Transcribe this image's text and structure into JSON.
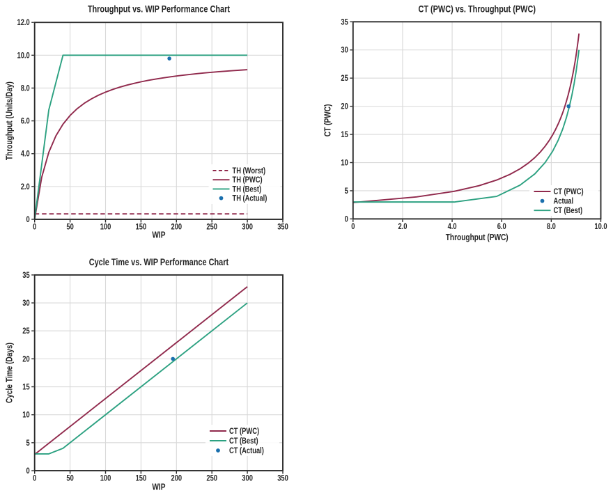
{
  "page": {
    "background": "#ffffff"
  },
  "colors": {
    "pwc_red": "#90294C",
    "best_green": "#2CA181",
    "actual_blue": "#1A6FAD",
    "grid": "#d9d9d9",
    "spine": "#2b2b2b",
    "text": "#252525",
    "plot_background": "#ffffff"
  },
  "chart_data": [
    {
      "type": "line",
      "title": "Throughput vs. WIP Performance Chart",
      "xlabel": "WIP",
      "ylabel": "Throughput (Units/Day)",
      "xlim": [
        0,
        350
      ],
      "ylim": [
        0,
        12
      ],
      "grid": true,
      "legend_position": "lower right",
      "xticks": {
        "values": [
          0,
          50,
          100,
          150,
          200,
          250,
          300,
          350
        ],
        "labels": [
          "0",
          "50",
          "100",
          "150",
          "200",
          "250",
          "300",
          "350"
        ]
      },
      "yticks": {
        "values": [
          0,
          2,
          4,
          6,
          8,
          10,
          12
        ],
        "labels": [
          "0",
          "2.0",
          "4.0",
          "6.0",
          "8.0",
          "10.0",
          "12.0"
        ]
      },
      "series": [
        {
          "name": "TH (Worst)",
          "kind": "line",
          "dash": "dashed",
          "color": "#90294C",
          "points": [
            [
              0,
              0.333
            ],
            [
              300,
              0.333
            ]
          ]
        },
        {
          "name": "TH (PWC)",
          "kind": "line",
          "dash": "solid",
          "color": "#90294C",
          "points": [
            [
              0,
              0.0
            ],
            [
              10,
              2.564
            ],
            [
              20,
              4.082
            ],
            [
              30,
              5.085
            ],
            [
              40,
              5.797
            ],
            [
              50,
              6.329
            ],
            [
              60,
              6.742
            ],
            [
              70,
              7.071
            ],
            [
              80,
              7.339
            ],
            [
              90,
              7.563
            ],
            [
              100,
              7.752
            ],
            [
              110,
              7.914
            ],
            [
              120,
              8.054
            ],
            [
              130,
              8.176
            ],
            [
              140,
              8.284
            ],
            [
              150,
              8.38
            ],
            [
              160,
              8.466
            ],
            [
              170,
              8.543
            ],
            [
              180,
              8.612
            ],
            [
              190,
              8.676
            ],
            [
              200,
              8.734
            ],
            [
              210,
              8.787
            ],
            [
              220,
              8.835
            ],
            [
              230,
              8.88
            ],
            [
              240,
              8.922
            ],
            [
              250,
              8.961
            ],
            [
              260,
              8.997
            ],
            [
              270,
              9.03
            ],
            [
              280,
              9.061
            ],
            [
              290,
              9.091
            ],
            [
              300,
              9.119
            ]
          ]
        },
        {
          "name": "TH (Best)",
          "kind": "line",
          "dash": "solid",
          "color": "#2CA181",
          "points": [
            [
              0,
              0
            ],
            [
              20,
              6.667
            ],
            [
              40,
              10
            ],
            [
              300,
              10
            ]
          ]
        },
        {
          "name": "TH (Actual)",
          "kind": "scatter",
          "color": "#1A6FAD",
          "points": [
            [
              190,
              9.8
            ]
          ]
        }
      ]
    },
    {
      "type": "line",
      "title": "CT (PWC) vs. Throughput (PWC)",
      "xlabel": "Throughput (PWC)",
      "ylabel": "CT (PWC)",
      "xlim": [
        0,
        10
      ],
      "ylim": [
        0,
        35
      ],
      "grid": true,
      "legend_position": "lower right",
      "xticks": {
        "values": [
          0,
          2,
          4,
          6,
          8,
          10
        ],
        "labels": [
          "0",
          "2.0",
          "4.0",
          "6.0",
          "8.0",
          "10.0"
        ]
      },
      "yticks": {
        "values": [
          0,
          5,
          10,
          15,
          20,
          25,
          30,
          35
        ],
        "labels": [
          "0",
          "5",
          "10",
          "15",
          "20",
          "25",
          "30",
          "35"
        ]
      },
      "series": [
        {
          "name": "CT (PWC)",
          "kind": "line",
          "dash": "solid",
          "color": "#90294C",
          "points": [
            [
              0.0,
              2.9
            ],
            [
              2.564,
              3.9
            ],
            [
              4.082,
              4.9
            ],
            [
              5.085,
              5.9
            ],
            [
              5.797,
              6.9
            ],
            [
              6.329,
              7.9
            ],
            [
              6.742,
              8.9
            ],
            [
              7.071,
              9.9
            ],
            [
              7.339,
              10.9
            ],
            [
              7.563,
              11.9
            ],
            [
              7.752,
              12.9
            ],
            [
              7.914,
              13.9
            ],
            [
              8.054,
              14.9
            ],
            [
              8.176,
              15.9
            ],
            [
              8.284,
              16.9
            ],
            [
              8.38,
              17.9
            ],
            [
              8.466,
              18.9
            ],
            [
              8.543,
              19.9
            ],
            [
              8.612,
              20.9
            ],
            [
              8.676,
              21.9
            ],
            [
              8.734,
              22.9
            ],
            [
              8.787,
              23.9
            ],
            [
              8.835,
              24.9
            ],
            [
              8.88,
              25.9
            ],
            [
              8.922,
              26.9
            ],
            [
              8.961,
              27.9
            ],
            [
              8.997,
              28.9
            ],
            [
              9.03,
              29.9
            ],
            [
              9.061,
              30.9
            ],
            [
              9.091,
              31.9
            ],
            [
              9.119,
              32.9
            ]
          ]
        },
        {
          "name": "Actual",
          "kind": "scatter",
          "color": "#1A6FAD",
          "points": [
            [
              8.7,
              20
            ]
          ]
        },
        {
          "name": "CT (Best)",
          "kind": "line",
          "dash": "solid",
          "color": "#2CA181",
          "points": [
            [
              0.0,
              3.0
            ],
            [
              4.082,
              3.0
            ],
            [
              5.797,
              4.0
            ],
            [
              6.742,
              6.0
            ],
            [
              7.339,
              8.0
            ],
            [
              7.752,
              10.0
            ],
            [
              8.054,
              12.0
            ],
            [
              8.284,
              14.0
            ],
            [
              8.466,
              16.0
            ],
            [
              8.612,
              18.0
            ],
            [
              8.734,
              20.0
            ],
            [
              8.835,
              22.0
            ],
            [
              8.922,
              24.0
            ],
            [
              8.997,
              26.0
            ],
            [
              9.061,
              28.0
            ],
            [
              9.119,
              30.0
            ]
          ]
        }
      ]
    },
    {
      "type": "line",
      "title": "Cycle Time vs. WIP Performance Chart",
      "xlabel": "WIP",
      "ylabel": "Cycle Time (Days)",
      "xlim": [
        0,
        350
      ],
      "ylim": [
        0,
        35
      ],
      "grid": true,
      "legend_position": "lower right",
      "xticks": {
        "values": [
          0,
          50,
          100,
          150,
          200,
          250,
          300,
          350
        ],
        "labels": [
          "0",
          "50",
          "100",
          "150",
          "200",
          "250",
          "300",
          "350"
        ]
      },
      "yticks": {
        "values": [
          0,
          5,
          10,
          15,
          20,
          25,
          30,
          35
        ],
        "labels": [
          "0",
          "5",
          "10",
          "15",
          "20",
          "25",
          "30",
          "35"
        ]
      },
      "series": [
        {
          "name": "CT (PWC)",
          "kind": "line",
          "dash": "solid",
          "color": "#90294C",
          "points": [
            [
              0,
              2.9
            ],
            [
              300,
              32.9
            ]
          ]
        },
        {
          "name": "CT (Best)",
          "kind": "line",
          "dash": "solid",
          "color": "#2CA181",
          "points": [
            [
              0,
              3.0
            ],
            [
              20,
              3.0
            ],
            [
              40,
              4.0
            ],
            [
              300,
              30.0
            ]
          ]
        },
        {
          "name": "CT (Actual)",
          "kind": "scatter",
          "color": "#1A6FAD",
          "points": [
            [
              195,
              20
            ]
          ]
        }
      ]
    }
  ]
}
